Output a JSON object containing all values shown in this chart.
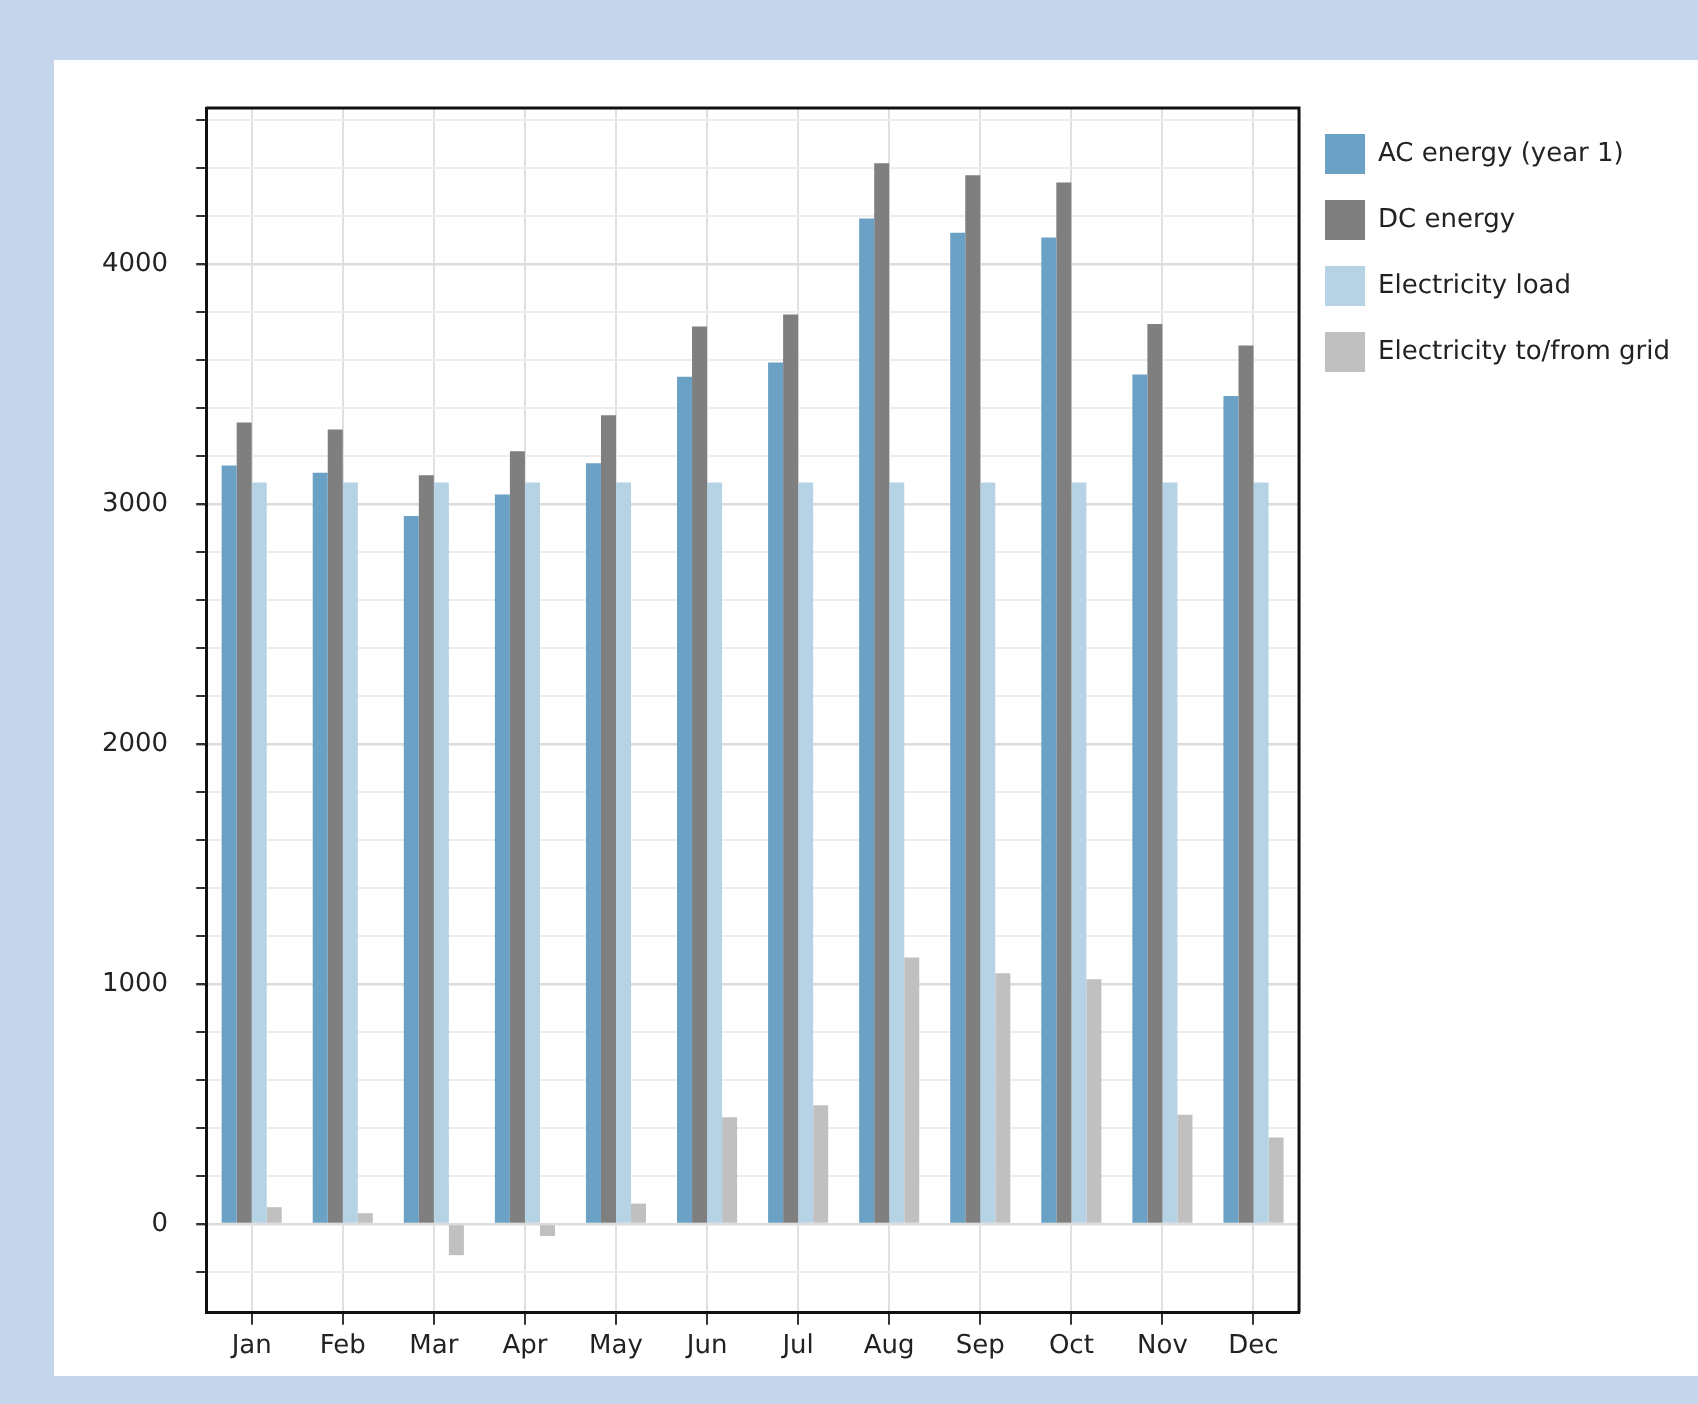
{
  "chart_data": {
    "type": "bar",
    "categories": [
      "Jan",
      "Feb",
      "Mar",
      "Apr",
      "May",
      "Jun",
      "Jul",
      "Aug",
      "Sep",
      "Oct",
      "Nov",
      "Dec"
    ],
    "series": [
      {
        "name": "AC energy (year 1)",
        "color": "#6aa1c4",
        "values": [
          3160,
          3130,
          2950,
          3040,
          3170,
          3530,
          3590,
          4190,
          4130,
          4110,
          3540,
          3450
        ]
      },
      {
        "name": "DC energy",
        "color": "#7f7f7f",
        "values": [
          3340,
          3310,
          3120,
          3220,
          3370,
          3740,
          3790,
          4420,
          4370,
          4340,
          3750,
          3660
        ]
      },
      {
        "name": "Electricity load",
        "color": "#b5d3e4",
        "values": [
          3090,
          3090,
          3090,
          3090,
          3090,
          3090,
          3090,
          3090,
          3090,
          3090,
          3090,
          3090
        ]
      },
      {
        "name": "Electricity to/from grid",
        "color": "#c0c0c0",
        "values": [
          70,
          45,
          -130,
          -50,
          85,
          445,
          495,
          1110,
          1045,
          1020,
          455,
          360
        ]
      }
    ],
    "ylim": [
      -370,
      4650
    ],
    "yticks": [
      {
        "value": -200,
        "label": null
      },
      0,
      {
        "value": 200,
        "label": null
      },
      {
        "value": 400,
        "label": null
      },
      {
        "value": 600,
        "label": null
      },
      {
        "value": 800,
        "label": null
      },
      1000,
      {
        "value": 1200,
        "label": null
      },
      {
        "value": 1400,
        "label": null
      },
      {
        "value": 1600,
        "label": null
      },
      {
        "value": 1800,
        "label": null
      },
      2000,
      {
        "value": 2200,
        "label": null
      },
      {
        "value": 2400,
        "label": null
      },
      {
        "value": 2600,
        "label": null
      },
      {
        "value": 2800,
        "label": null
      },
      3000,
      {
        "value": 3200,
        "label": null
      },
      {
        "value": 3400,
        "label": null
      },
      {
        "value": 3600,
        "label": null
      },
      {
        "value": 3800,
        "label": null
      },
      4000,
      {
        "value": 4200,
        "label": null
      },
      {
        "value": 4400,
        "label": null
      },
      {
        "value": 4600,
        "label": null
      }
    ],
    "grid": true,
    "legend": "top right"
  }
}
